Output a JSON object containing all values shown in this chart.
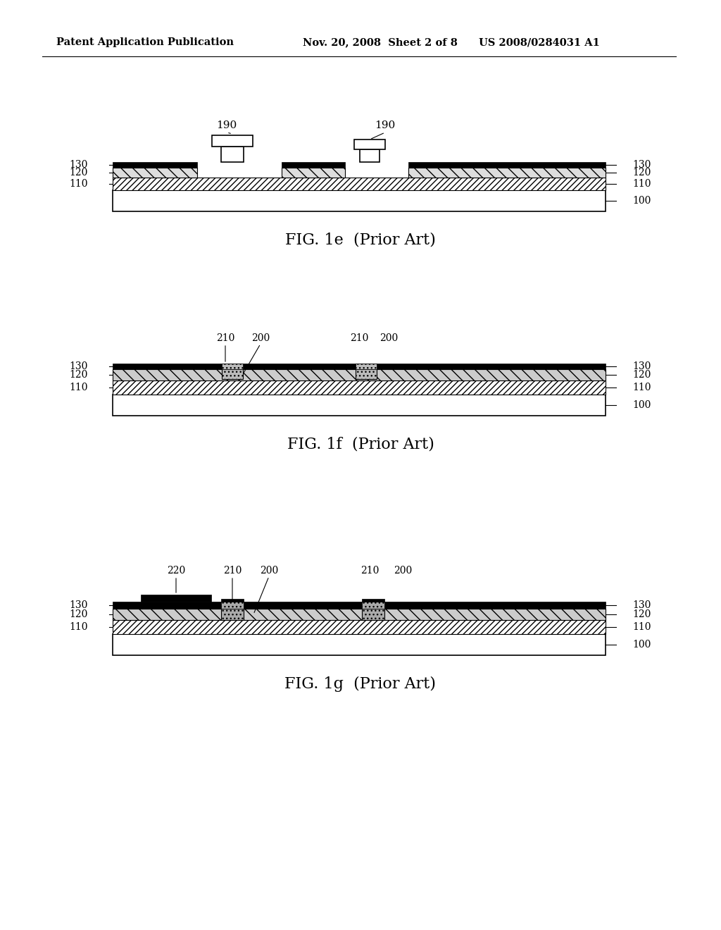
{
  "bg_color": "#ffffff",
  "header_left": "Patent Application Publication",
  "header_mid": "Nov. 20, 2008  Sheet 2 of 8",
  "header_right": "US 2008/0284031 A1",
  "fig1e_label": "FIG. 1e",
  "fig1f_label": "FIG. 1f",
  "fig1g_label": "FIG. 1g",
  "prior_art": "(Prior Art)",
  "layer_labels_left": [
    "130",
    "120",
    "110"
  ],
  "layer_labels_right_1e": [
    "130",
    "120",
    "110",
    "100"
  ],
  "layer_labels_right": [
    "130",
    "120",
    "110",
    "100"
  ],
  "via_label_1e": "190",
  "layer_labels_1f_top_left": [
    "210",
    "200",
    "210",
    "200"
  ],
  "layer_labels_1g_top": [
    "220",
    "210",
    "200",
    "210",
    "200"
  ],
  "diag_color": "#888888",
  "hatch_color": "#555555"
}
